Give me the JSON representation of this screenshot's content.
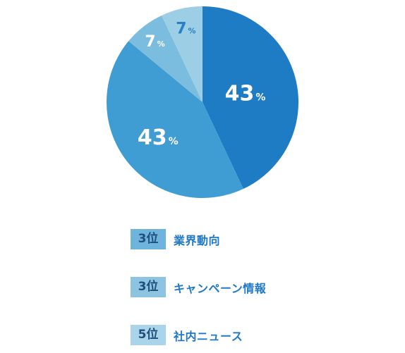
{
  "chart_data": {
    "type": "pie",
    "title": "",
    "slices": [
      {
        "value": 43,
        "display": "43",
        "unit": "%",
        "color": "#1e7cc4",
        "label_color": "#ffffff"
      },
      {
        "value": 43,
        "display": "43",
        "unit": "%",
        "color": "#3f9dd3",
        "label_color": "#ffffff"
      },
      {
        "value": 7,
        "display": "7",
        "unit": "%",
        "color": "#7bbddf",
        "label_color": "#ffffff"
      },
      {
        "value": 7,
        "display": "7",
        "unit": "%",
        "color": "#9ccee6",
        "label_color": "#2a7fc4"
      }
    ],
    "start_angle_deg": 0,
    "direction": "clockwise"
  },
  "legend": {
    "items": [
      {
        "rank": "3位",
        "label": "業界動向",
        "badge_color": "#6fb4dc"
      },
      {
        "rank": "3位",
        "label": "キャンペーン情報",
        "badge_color": "#8cc4e2"
      },
      {
        "rank": "5位",
        "label": "社内ニュース",
        "badge_color": "#a9d4ea"
      }
    ]
  }
}
